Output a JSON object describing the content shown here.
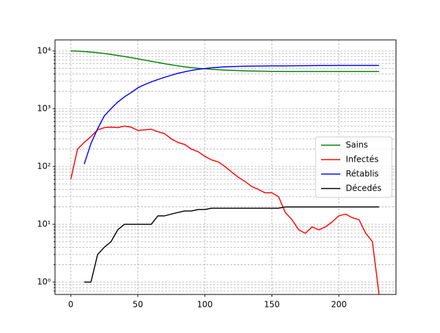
{
  "chart_data": {
    "type": "line",
    "x": [
      0,
      5,
      10,
      15,
      20,
      25,
      30,
      35,
      40,
      45,
      50,
      55,
      60,
      65,
      70,
      75,
      80,
      85,
      90,
      95,
      100,
      105,
      110,
      115,
      120,
      125,
      130,
      135,
      140,
      145,
      150,
      155,
      160,
      165,
      170,
      175,
      180,
      185,
      190,
      195,
      200,
      205,
      210,
      215,
      220,
      225,
      230
    ],
    "series": [
      {
        "name": "Sains",
        "color": "#008000",
        "values": [
          10000,
          9900,
          9750,
          9550,
          9300,
          9000,
          8700,
          8350,
          8000,
          7650,
          7300,
          6950,
          6600,
          6300,
          6000,
          5750,
          5500,
          5300,
          5150,
          5000,
          4900,
          4800,
          4720,
          4650,
          4600,
          4560,
          4520,
          4490,
          4470,
          4450,
          4430,
          4420,
          4410,
          4405,
          4400,
          4400,
          4400,
          4400,
          4400,
          4400,
          4400,
          4400,
          4400,
          4400,
          4400,
          4400,
          4400
        ]
      },
      {
        "name": "Infectés",
        "color": "#ff0000",
        "values": [
          60,
          200,
          260,
          330,
          430,
          470,
          480,
          470,
          500,
          480,
          420,
          430,
          440,
          400,
          370,
          300,
          260,
          240,
          200,
          180,
          150,
          130,
          120,
          100,
          80,
          65,
          55,
          45,
          40,
          35,
          35,
          30,
          16,
          12,
          8,
          7,
          9,
          8,
          9,
          11,
          14,
          15,
          13,
          12,
          7,
          5,
          0.6
        ]
      },
      {
        "name": "Rétablis",
        "color": "#0000ff",
        "values": [
          null,
          null,
          110,
          250,
          450,
          750,
          1000,
          1300,
          1600,
          1900,
          2300,
          2600,
          2900,
          3200,
          3500,
          3800,
          4100,
          4350,
          4600,
          4800,
          4950,
          5100,
          5200,
          5300,
          5350,
          5400,
          5430,
          5450,
          5470,
          5490,
          5500,
          5510,
          5520,
          5530,
          5540,
          5550,
          5560,
          5570,
          5580,
          5590,
          5600,
          5600,
          5600,
          5600,
          5600,
          5600,
          5600
        ]
      },
      {
        "name": "Décedés",
        "color": "#000000",
        "values": [
          null,
          null,
          1,
          1,
          3,
          4,
          5,
          8,
          10,
          10,
          10,
          10,
          10,
          14,
          14,
          15,
          16,
          17,
          17,
          18,
          18,
          19,
          19,
          19,
          19,
          19,
          19,
          19,
          19,
          19,
          19,
          19,
          20,
          20,
          20,
          20,
          20,
          20,
          20,
          20,
          20,
          20,
          20,
          20,
          20,
          20,
          20
        ]
      }
    ],
    "xlim": [
      -11.8,
      242.6
    ],
    "xticks": [
      0,
      50,
      100,
      150,
      200
    ],
    "ylim": [
      0.61,
      15500
    ],
    "yticks": [
      {
        "value": 1,
        "label": "10⁰"
      },
      {
        "value": 10,
        "label": "10¹"
      },
      {
        "value": 100,
        "label": "10²"
      },
      {
        "value": 1000,
        "label": "10³"
      },
      {
        "value": 10000,
        "label": "10⁴"
      }
    ],
    "yminor_ticks": [
      0.7,
      0.8,
      0.9,
      2,
      3,
      4,
      5,
      6,
      7,
      8,
      9,
      20,
      30,
      40,
      50,
      60,
      70,
      80,
      90,
      200,
      300,
      400,
      500,
      600,
      700,
      800,
      900,
      2000,
      3000,
      4000,
      5000,
      6000,
      7000,
      8000,
      9000
    ],
    "log_y": true,
    "grid": true,
    "legend": "center right"
  }
}
